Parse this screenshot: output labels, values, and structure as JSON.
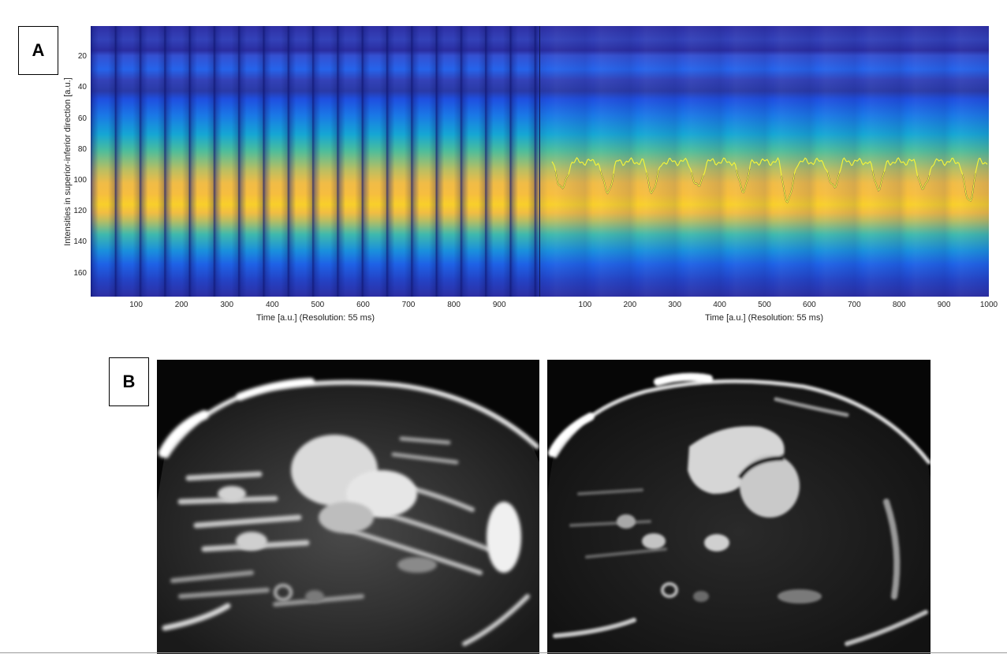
{
  "panel_a": {
    "label": "A",
    "y_axis_title": "Intensities in superior-inferior direction [a.u.]",
    "y_ticks": [
      "20",
      "40",
      "60",
      "80",
      "100",
      "120",
      "140",
      "160"
    ],
    "left_plot": {
      "x_axis_title": "Time [a.u.] (Resolution: 55 ms)",
      "x_ticks": [
        "100",
        "200",
        "300",
        "400",
        "500",
        "600",
        "700",
        "800",
        "900"
      ]
    },
    "right_plot": {
      "x_axis_title": "Time [a.u.] (Resolution: 55 ms)",
      "x_ticks": [
        "100",
        "200",
        "300",
        "400",
        "500",
        "600",
        "700",
        "800",
        "900",
        "1000"
      ]
    }
  },
  "panel_b": {
    "label": "B"
  },
  "colors": {
    "trace_upper": "#f2f23a",
    "trace_lower": "#1a1a60",
    "colormap": "parula"
  }
}
